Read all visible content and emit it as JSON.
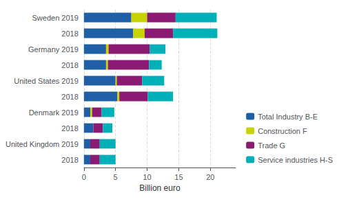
{
  "chart_data": {
    "type": "bar",
    "orientation": "horizontal",
    "stacked": true,
    "categories": [
      "Sweden 2019",
      "2018",
      "Germany 2019",
      "2018",
      "United States 2019",
      "2018",
      "Denmark 2019",
      "2018",
      "United Kingdom 2019",
      "2018"
    ],
    "series": [
      {
        "name": "Total Industry B-E",
        "color": "#1f5fa6",
        "values": [
          7.5,
          7.8,
          3.5,
          3.5,
          5.0,
          5.3,
          1.0,
          1.5,
          1.0,
          1.0
        ]
      },
      {
        "name": "Construction F",
        "color": "#c8d400",
        "values": [
          2.5,
          1.8,
          0.4,
          0.3,
          0.2,
          0.3,
          0.3,
          0.0,
          0.0,
          0.0
        ]
      },
      {
        "name": "Trade G",
        "color": "#8b1a72",
        "values": [
          4.5,
          4.5,
          6.5,
          6.5,
          4.0,
          4.5,
          1.5,
          1.5,
          1.5,
          1.5
        ]
      },
      {
        "name": "Service industries H-S",
        "color": "#00b0b9",
        "values": [
          6.5,
          7.0,
          2.5,
          2.0,
          3.5,
          4.0,
          2.0,
          1.5,
          2.5,
          2.5
        ]
      }
    ],
    "xlabel": "Billion euro",
    "xlim": [
      0,
      24
    ],
    "xticks": [
      0,
      5,
      10,
      15,
      20
    ],
    "grid": true,
    "legend": "lower right"
  }
}
